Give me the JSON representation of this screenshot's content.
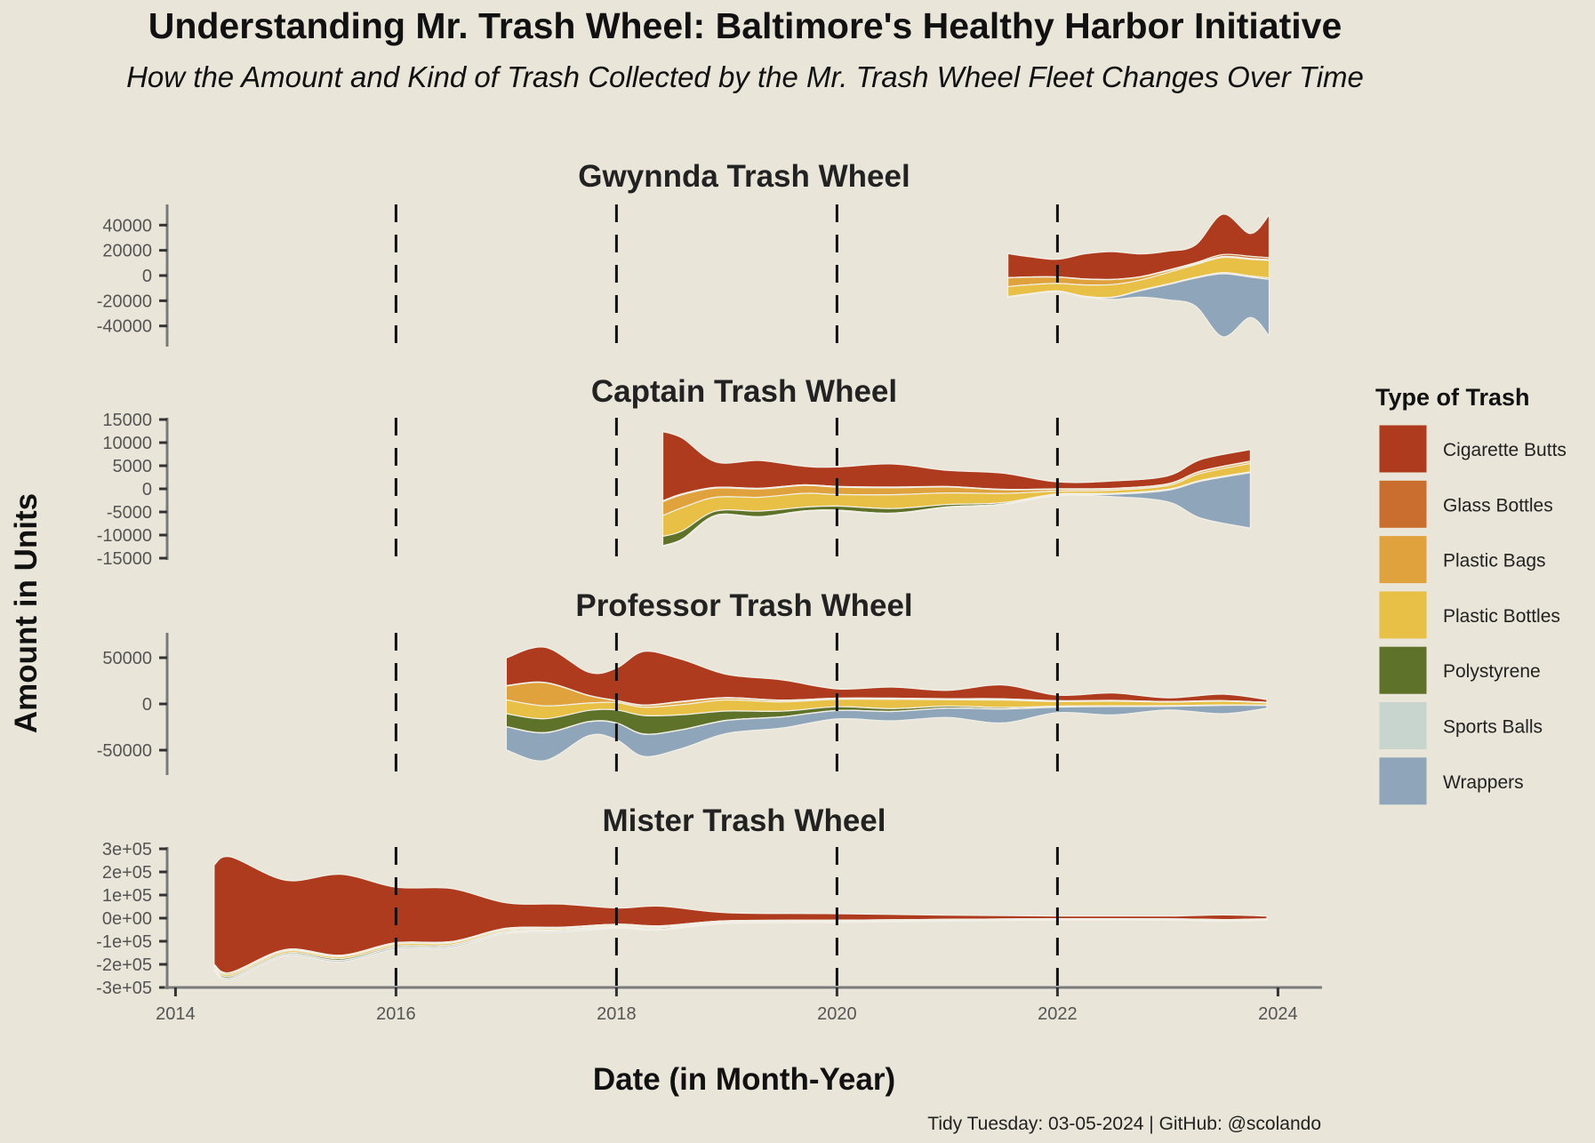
{
  "title": "Understanding Mr. Trash Wheel: Baltimore's Healthy Harbor Initiative",
  "subtitle": "How the Amount and Kind of Trash Collected by the Mr. Trash Wheel Fleet Changes Over Time",
  "caption": "Tidy Tuesday: 03-05-2024 | GitHub: @scolando",
  "chart_data": {
    "type": "area",
    "subtype": "streamgraph (faceted)",
    "xlabel": "Date (in Month-Year)",
    "ylabel": "Amount in Units",
    "xlim": [
      2013.9,
      2024.4
    ],
    "x_ticks": [
      2014,
      2016,
      2018,
      2020,
      2022,
      2024
    ],
    "x_tick_labels": [
      "2014",
      "2016",
      "2018",
      "2020",
      "2022",
      "2024"
    ],
    "vlines": [
      2016,
      2018,
      2020,
      2022
    ],
    "vline_style": "dashed",
    "legend": {
      "title": "Type of Trash",
      "position": "right",
      "entries": [
        {
          "name": "Cigarette Butts",
          "color": "#ae3b1e"
        },
        {
          "name": "Glass Bottles",
          "color": "#ca6e2f"
        },
        {
          "name": "Plastic Bags",
          "color": "#e0a23c"
        },
        {
          "name": "Plastic Bottles",
          "color": "#e8c045"
        },
        {
          "name": "Polystyrene",
          "color": "#5f7229"
        },
        {
          "name": "Sports Balls",
          "color": "#c8d5cf"
        },
        {
          "name": "Wrappers",
          "color": "#8fa5ba"
        }
      ]
    },
    "facets": [
      {
        "title": "Gwynnda Trash Wheel",
        "ylim": [
          -55000,
          55000
        ],
        "y_ticks": [
          40000,
          20000,
          0,
          -20000,
          -40000
        ],
        "y_tick_labels": [
          "40000",
          "20000",
          "0",
          "-20000",
          "-40000"
        ],
        "x": [
          2021.55,
          2021.75,
          2022.0,
          2022.25,
          2022.5,
          2022.75,
          2023.0,
          2023.25,
          2023.5,
          2023.75,
          2023.92
        ],
        "series": [
          {
            "name": "Cigarette Butts",
            "values": [
              19000,
              16000,
              14000,
              20000,
              22000,
              18000,
              15000,
              14000,
              32000,
              18000,
              34000
            ]
          },
          {
            "name": "Glass Bottles",
            "values": [
              200,
              200,
              200,
              200,
              200,
              300,
              500,
              800,
              1500,
              1800,
              1500
            ]
          },
          {
            "name": "Plastic Bags",
            "values": [
              7000,
              6000,
              5000,
              4500,
              4000,
              2500,
              1500,
              800,
              800,
              700,
              600
            ]
          },
          {
            "name": "Plastic Bottles",
            "values": [
              8000,
              7000,
              6000,
              9000,
              10000,
              8000,
              9000,
              10000,
              12000,
              13000,
              14000
            ]
          },
          {
            "name": "Polystyrene",
            "values": [
              200,
              200,
              200,
              200,
              200,
              300,
              400,
              500,
              800,
              900,
              1000
            ]
          },
          {
            "name": "Sports Balls",
            "values": [
              100,
              100,
              100,
              100,
              100,
              100,
              100,
              100,
              100,
              100,
              100
            ]
          },
          {
            "name": "Wrappers",
            "values": [
              300,
              300,
              300,
              500,
              1500,
              5000,
              12000,
              22000,
              50000,
              32000,
              45000
            ]
          }
        ]
      },
      {
        "title": "Captain Trash Wheel",
        "ylim": [
          -15000,
          15000
        ],
        "y_ticks": [
          15000,
          10000,
          5000,
          0,
          -5000,
          -10000,
          -15000
        ],
        "y_tick_labels": [
          "15000",
          "10000",
          "5000",
          "0",
          "-5000",
          "-10000",
          "-15000"
        ],
        "x": [
          2018.42,
          2018.6,
          2018.9,
          2019.3,
          2019.7,
          2020.0,
          2020.5,
          2021.0,
          2021.5,
          2022.0,
          2022.5,
          2023.0,
          2023.3,
          2023.75
        ],
        "series": [
          {
            "name": "Cigarette Butts",
            "values": [
              15000,
              12000,
              5500,
              6000,
              4000,
              4200,
              5000,
              3500,
              3500,
              1500,
              1600,
              1700,
              2500,
              2500
            ]
          },
          {
            "name": "Glass Bottles",
            "values": [
              200,
              200,
              150,
              150,
              150,
              150,
              150,
              100,
              100,
              100,
              100,
              100,
              100,
              100
            ]
          },
          {
            "name": "Plastic Bags",
            "values": [
              3000,
              2800,
              2000,
              1800,
              1700,
              1600,
              1500,
              1300,
              800,
              400,
              300,
              300,
              400,
              400
            ]
          },
          {
            "name": "Plastic Bottles",
            "values": [
              4500,
              5000,
              3000,
              3000,
              3000,
              2500,
              3000,
              2500,
              2000,
              600,
              700,
              800,
              1500,
              1800
            ]
          },
          {
            "name": "Polystyrene",
            "values": [
              2000,
              1800,
              900,
              1200,
              800,
              900,
              1000,
              500,
              300,
              100,
              100,
              100,
              100,
              100
            ]
          },
          {
            "name": "Sports Balls",
            "values": [
              100,
              100,
              100,
              100,
              100,
              100,
              100,
              100,
              100,
              100,
              100,
              100,
              100,
              100
            ]
          },
          {
            "name": "Wrappers",
            "values": [
              0,
              0,
              0,
              0,
              0,
              0,
              0,
              0,
              0,
              200,
              500,
              2500,
              8000,
              12000
            ]
          }
        ]
      },
      {
        "title": "Professor Trash Wheel",
        "ylim": [
          -75000,
          75000
        ],
        "y_ticks": [
          50000,
          0,
          -50000
        ],
        "y_tick_labels": [
          "50000",
          "0",
          "-50000"
        ],
        "x": [
          2017.0,
          2017.35,
          2017.75,
          2018.0,
          2018.25,
          2018.6,
          2019.0,
          2019.5,
          2020.0,
          2020.5,
          2021.0,
          2021.5,
          2022.0,
          2022.5,
          2023.0,
          2023.5,
          2023.9
        ],
        "series": [
          {
            "name": "Cigarette Butts",
            "values": [
              30000,
              38000,
              25000,
              35000,
              58000,
              45000,
              25000,
              22000,
              10000,
              12000,
              9000,
              15000,
              6000,
              8000,
              4000,
              7000,
              3000
            ]
          },
          {
            "name": "Glass Bottles",
            "values": [
              400,
              400,
              300,
              300,
              400,
              500,
              600,
              500,
              300,
              300,
              300,
              600,
              300,
              300,
              200,
              200,
              200
            ]
          },
          {
            "name": "Plastic Bags",
            "values": [
              15000,
              25000,
              8000,
              2000,
              2000,
              3000,
              2000,
              1500,
              1000,
              1000,
              800,
              800,
              600,
              500,
              400,
              400,
              300
            ]
          },
          {
            "name": "Plastic Bottles",
            "values": [
              15000,
              14000,
              8000,
              8000,
              9000,
              11000,
              12000,
              10000,
              8000,
              10000,
              7000,
              8000,
              5000,
              5000,
              4000,
              4000,
              2500
            ]
          },
          {
            "name": "Polystyrene",
            "values": [
              14000,
              15000,
              12000,
              14000,
              20000,
              16000,
              10000,
              6000,
              4000,
              3000,
              2000,
              1500,
              800,
              600,
              500,
              300,
              200
            ]
          },
          {
            "name": "Sports Balls",
            "values": [
              200,
              200,
              200,
              200,
              200,
              200,
              200,
              200,
              200,
              200,
              200,
              200,
              200,
              200,
              200,
              200,
              200
            ]
          },
          {
            "name": "Wrappers",
            "values": [
              25000,
              30000,
              15000,
              18000,
              24000,
              20000,
              14000,
              12000,
              9000,
              10000,
              10000,
              15000,
              6000,
              9000,
              4000,
              9000,
              3000
            ]
          }
        ]
      },
      {
        "title": "Mister Trash Wheel",
        "ylim": [
          -300000,
          300000
        ],
        "y_ticks": [
          300000,
          200000,
          100000,
          0,
          -100000,
          -200000,
          -300000
        ],
        "y_tick_labels": [
          "3e+05",
          "2e+05",
          "1e+05",
          "0e+00",
          "-1e+05",
          "-2e+05",
          "-3e+05"
        ],
        "x": [
          2014.35,
          2014.5,
          2015.0,
          2015.5,
          2016.0,
          2016.5,
          2017.0,
          2017.5,
          2018.0,
          2018.4,
          2019.0,
          2020.0,
          2021.0,
          2022.0,
          2023.0,
          2023.5,
          2023.9
        ],
        "series": [
          {
            "name": "Cigarette Butts",
            "values": [
              430000,
              500000,
              300000,
              350000,
              240000,
              230000,
              110000,
              100000,
              70000,
              85000,
              35000,
              28000,
              18000,
              12000,
              12000,
              20000,
              12000
            ]
          },
          {
            "name": "Glass Bottles",
            "values": [
              2000,
              2000,
              2000,
              2000,
              1500,
              1500,
              1000,
              1000,
              800,
              800,
              500,
              400,
              300,
              300,
              300,
              300,
              300
            ]
          },
          {
            "name": "Plastic Bags",
            "values": [
              6000,
              6000,
              5000,
              5000,
              5000,
              4500,
              4000,
              3500,
              3000,
              3000,
              2000,
              1500,
              1000,
              800,
              700,
              700,
              600
            ]
          },
          {
            "name": "Plastic Bottles",
            "values": [
              8000,
              8000,
              8000,
              8000,
              8000,
              8000,
              6000,
              6000,
              5000,
              5000,
              4000,
              4000,
              3000,
              3000,
              2500,
              2500,
              2500
            ]
          },
          {
            "name": "Polystyrene",
            "values": [
              7000,
              7000,
              6000,
              7000,
              6000,
              6000,
              5000,
              5000,
              4000,
              5000,
              2000,
              1500,
              1000,
              800,
              600,
              600,
              500
            ]
          },
          {
            "name": "Sports Balls",
            "values": [
              1000,
              1000,
              1000,
              1000,
              1000,
              1000,
              1000,
              1000,
              800,
              800,
              700,
              600,
              500,
              400,
              400,
              400,
              400
            ]
          },
          {
            "name": "Wrappers",
            "values": [
              6000,
              6000,
              6000,
              6000,
              6000,
              6000,
              5000,
              5000,
              4000,
              4000,
              3000,
              2500,
              2000,
              1500,
              1500,
              3000,
              1500
            ]
          }
        ]
      }
    ]
  }
}
